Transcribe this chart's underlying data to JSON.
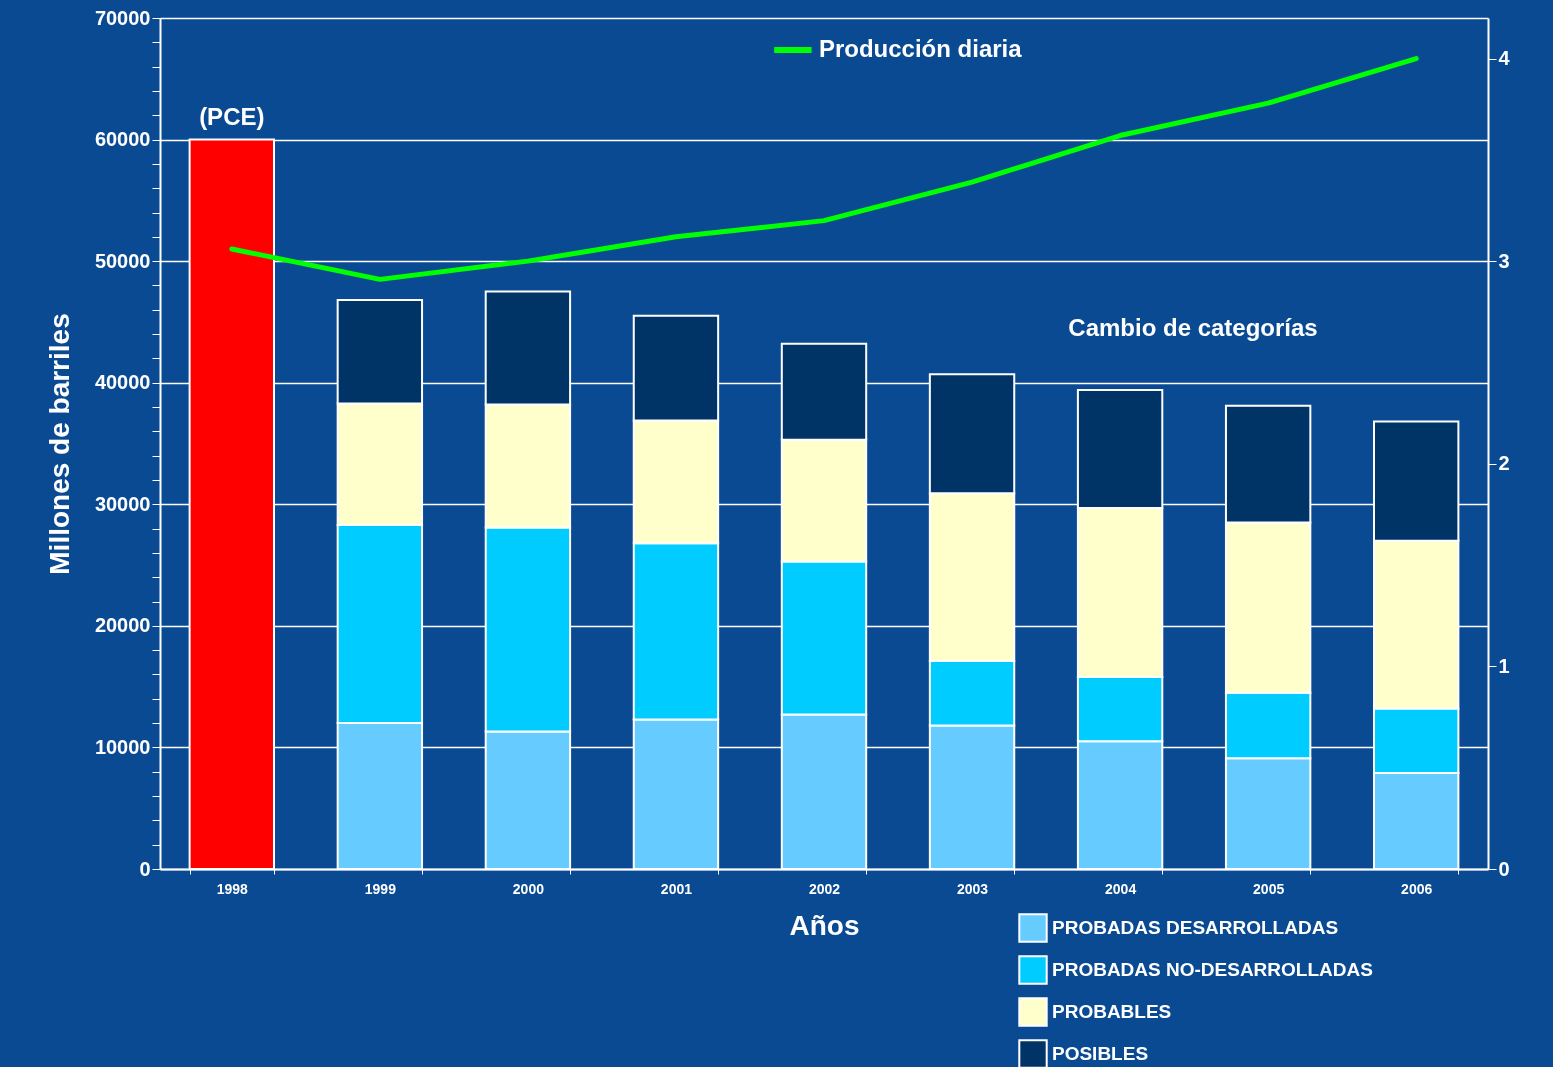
{
  "chart_data": {
    "type": "bar",
    "stacked": true,
    "xlabel": "Años",
    "ylabel": "Millones de barriles",
    "categories": [
      "1998",
      "1999",
      "2000",
      "2001",
      "2002",
      "2003",
      "2004",
      "2005",
      "2006"
    ],
    "series": [
      {
        "name": "PROBADAS DESARROLLADAS",
        "color": "#66ccff",
        "values": [
          null,
          12000,
          11300,
          12300,
          12700,
          11800,
          10500,
          9100,
          7900
        ]
      },
      {
        "name": "PROBADAS NO-DESARROLLADAS",
        "color": "#00ccff",
        "values": [
          null,
          16300,
          16800,
          14500,
          12600,
          5300,
          5300,
          5400,
          5300
        ]
      },
      {
        "name": "PROBABLES",
        "color": "#ffffcc",
        "values": [
          null,
          10000,
          10100,
          10100,
          10000,
          13800,
          13900,
          14000,
          13800
        ]
      },
      {
        "name": "POSIBLES",
        "color": "#003366",
        "values": [
          null,
          8500,
          9300,
          8600,
          7900,
          9800,
          9700,
          9600,
          9800
        ]
      },
      {
        "color": "#ff0000",
        "values": [
          60000,
          null,
          null,
          null,
          null,
          null,
          null,
          null,
          null
        ]
      },
      {
        "name": "Producción diaria",
        "type": "line",
        "axis": "y2",
        "color": "#00ff00",
        "values": [
          3.06,
          2.91,
          3.0,
          3.12,
          3.2,
          3.39,
          3.62,
          3.78,
          4.0
        ]
      }
    ],
    "ylim": [
      0,
      70000
    ],
    "yticks": [
      0,
      {
        "value": 2000,
        "label": null
      },
      {
        "value": 4000,
        "label": null
      },
      {
        "value": 6000,
        "label": null
      },
      {
        "value": 8000,
        "label": null
      },
      10000,
      {
        "value": 12000,
        "label": null
      },
      {
        "value": 14000,
        "label": null
      },
      {
        "value": 16000,
        "label": null
      },
      {
        "value": 18000,
        "label": null
      },
      20000,
      {
        "value": 22000,
        "label": null
      },
      {
        "value": 24000,
        "label": null
      },
      {
        "value": 26000,
        "label": null
      },
      {
        "value": 28000,
        "label": null
      },
      30000,
      {
        "value": 32000,
        "label": null
      },
      {
        "value": 34000,
        "label": null
      },
      {
        "value": 36000,
        "label": null
      },
      {
        "value": 38000,
        "label": null
      },
      40000,
      {
        "value": 42000,
        "label": null
      },
      {
        "value": 44000,
        "label": null
      },
      {
        "value": 46000,
        "label": null
      },
      {
        "value": 48000,
        "label": null
      },
      50000,
      {
        "value": 52000,
        "label": null
      },
      {
        "value": 54000,
        "label": null
      },
      {
        "value": 56000,
        "label": null
      },
      {
        "value": 58000,
        "label": null
      },
      60000,
      {
        "value": 62000,
        "label": null
      },
      {
        "value": 64000,
        "label": null
      },
      {
        "value": 66000,
        "label": null
      },
      {
        "value": 68000,
        "label": null
      },
      70000
    ],
    "y2lim": [
      0,
      4.2
    ],
    "y2ticks": [
      0,
      1,
      2,
      3,
      4
    ],
    "grid": "y",
    "legend": "bottom right",
    "annotations": [
      {
        "text": "(PCE)",
        "x": "1998",
        "y": 60000
      },
      "Cambio de categorías"
    ]
  }
}
